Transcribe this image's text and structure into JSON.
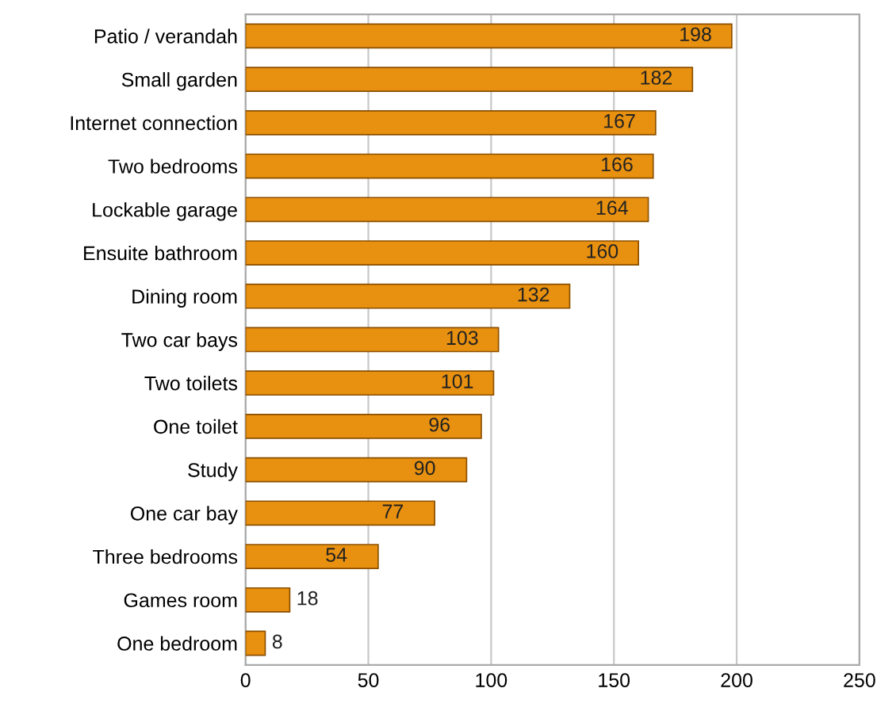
{
  "chart_data": {
    "type": "bar",
    "orientation": "horizontal",
    "categories": [
      "Patio / verandah",
      "Small garden",
      "Internet connection",
      "Two bedrooms",
      "Lockable garage",
      "Ensuite bathroom",
      "Dining room",
      "Two car bays",
      "Two toilets",
      "One toilet",
      "Study",
      "One car bay",
      "Three bedrooms",
      "Games room",
      "One bedroom"
    ],
    "values": [
      198,
      182,
      167,
      166,
      164,
      160,
      132,
      103,
      101,
      96,
      90,
      77,
      54,
      18,
      8
    ],
    "color": "#e8900f",
    "xlim": [
      0,
      250
    ],
    "xticks": [
      0,
      50,
      100,
      150,
      200,
      250
    ],
    "grid": "x",
    "data_labels": true
  }
}
